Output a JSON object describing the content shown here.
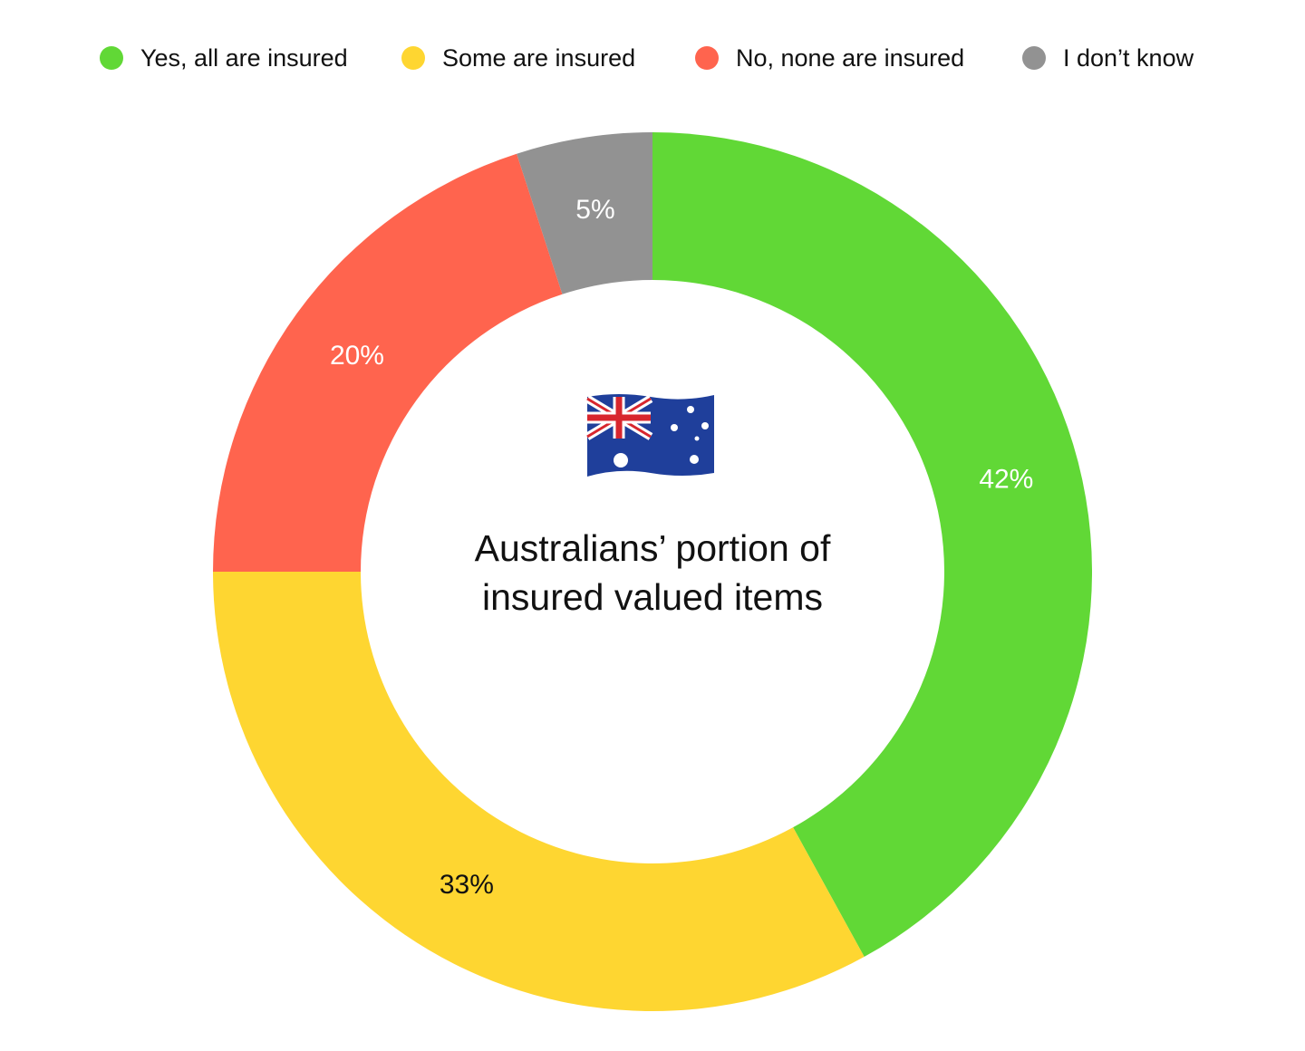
{
  "chart_data": {
    "type": "donut",
    "title": "Australians’ portion of insured valued items",
    "categories": [
      "Yes, all are insured",
      "Some are insured",
      "No, none are insured",
      "I don’t know"
    ],
    "values": [
      42,
      33,
      20,
      5
    ],
    "value_labels": [
      "42%",
      "33%",
      "20%",
      "5%"
    ],
    "colors": [
      "#61d836",
      "#fed631",
      "#ff644e",
      "#929292"
    ],
    "legend": "top"
  }
}
